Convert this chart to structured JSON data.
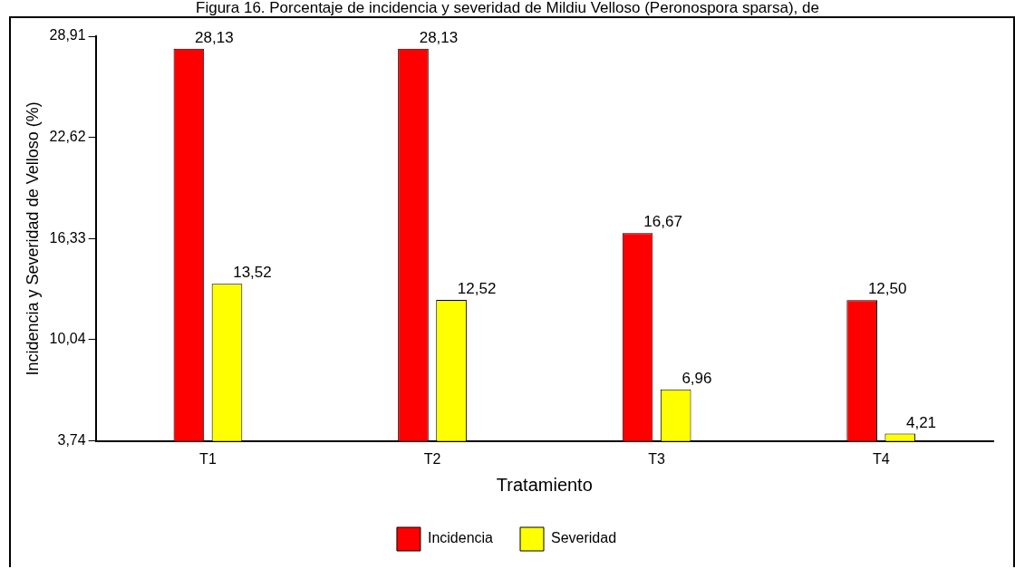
{
  "chart_data": {
    "type": "bar",
    "title": "Figura 16. Porcentaje de incidencia y severidad de Mildiu Velloso (Peronospora sparsa), de",
    "xlabel": "Tratamiento",
    "ylabel": "Incidencia y Severidad de Velloso (%)",
    "categories": [
      "T1",
      "T2",
      "T3",
      "T4"
    ],
    "series": [
      {
        "name": "Incidencia",
        "color": "#ff0000",
        "values": [
          28.13,
          28.13,
          16.67,
          12.5
        ],
        "value_labels": [
          "28,13",
          "28,13",
          "16,67",
          "12,50"
        ]
      },
      {
        "name": "Severidad",
        "color": "#ffff00",
        "values": [
          13.52,
          12.52,
          6.96,
          4.21
        ],
        "value_labels": [
          "13,52",
          "12,52",
          "6,96",
          "4,21"
        ]
      }
    ],
    "ylim": [
      3.74,
      28.91
    ],
    "yticks": [
      {
        "value": 3.74,
        "label": "3,74"
      },
      {
        "value": 10.04,
        "label": "10,04"
      },
      {
        "value": 16.33,
        "label": "16,33"
      },
      {
        "value": 22.62,
        "label": "22,62"
      },
      {
        "value": 28.91,
        "label": "28,91"
      }
    ],
    "grid": false,
    "legend": "bottom"
  }
}
